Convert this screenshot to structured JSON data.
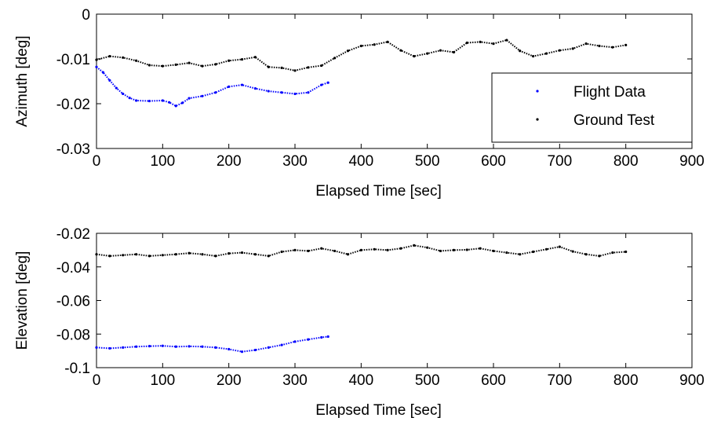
{
  "chart_data": [
    {
      "type": "scatter",
      "xlabel": "Elapsed Time [sec]",
      "ylabel": "Azimuth [deg]",
      "xlim": [
        0,
        900
      ],
      "ylim": [
        -0.03,
        0
      ],
      "xticks": [
        0,
        100,
        200,
        300,
        400,
        500,
        600,
        700,
        800,
        900
      ],
      "xtick_labels": [
        "0",
        "100",
        "200",
        "300",
        "400",
        "500",
        "600",
        "700",
        "800",
        "900"
      ],
      "yticks": [
        -0.03,
        -0.02,
        -0.01,
        0
      ],
      "ytick_labels": [
        "-0.03",
        "-0.02",
        "-0.01",
        "0"
      ],
      "grid": false,
      "legend": {
        "placement": "right",
        "entries": [
          "Flight Data",
          "Ground Test"
        ]
      },
      "series": [
        {
          "name": "Flight Data",
          "color": "#0000ff",
          "x": [
            0,
            10,
            20,
            30,
            40,
            50,
            60,
            80,
            100,
            110,
            120,
            130,
            140,
            160,
            180,
            200,
            220,
            240,
            260,
            280,
            300,
            320,
            340,
            350
          ],
          "y": [
            -0.0118,
            -0.013,
            -0.0148,
            -0.0165,
            -0.0178,
            -0.0187,
            -0.0193,
            -0.0194,
            -0.0193,
            -0.0197,
            -0.0205,
            -0.0198,
            -0.0188,
            -0.0183,
            -0.0175,
            -0.0162,
            -0.0158,
            -0.0166,
            -0.0172,
            -0.0175,
            -0.0178,
            -0.0175,
            -0.0158,
            -0.0153
          ]
        },
        {
          "name": "Ground Test",
          "color": "#000000",
          "x": [
            0,
            20,
            40,
            60,
            80,
            100,
            120,
            140,
            160,
            180,
            200,
            220,
            240,
            260,
            280,
            300,
            320,
            340,
            360,
            380,
            400,
            420,
            440,
            460,
            480,
            500,
            520,
            540,
            560,
            580,
            600,
            620,
            640,
            660,
            680,
            700,
            720,
            740,
            760,
            780,
            800
          ],
          "y": [
            -0.0102,
            -0.0094,
            -0.0097,
            -0.0104,
            -0.0114,
            -0.0116,
            -0.0113,
            -0.0109,
            -0.0116,
            -0.0112,
            -0.0104,
            -0.0101,
            -0.0096,
            -0.0118,
            -0.012,
            -0.0126,
            -0.0119,
            -0.0115,
            -0.0098,
            -0.0082,
            -0.0071,
            -0.0068,
            -0.0062,
            -0.0081,
            -0.0094,
            -0.0088,
            -0.0081,
            -0.0085,
            -0.0064,
            -0.0062,
            -0.0066,
            -0.0058,
            -0.0082,
            -0.0094,
            -0.0088,
            -0.0081,
            -0.0077,
            -0.0066,
            -0.0071,
            -0.0074,
            -0.0069
          ]
        }
      ]
    },
    {
      "type": "scatter",
      "xlabel": "Elapsed Time [sec]",
      "ylabel": "Elevation [deg]",
      "xlim": [
        0,
        900
      ],
      "ylim": [
        -0.1,
        -0.02
      ],
      "xticks": [
        0,
        100,
        200,
        300,
        400,
        500,
        600,
        700,
        800,
        900
      ],
      "xtick_labels": [
        "0",
        "100",
        "200",
        "300",
        "400",
        "500",
        "600",
        "700",
        "800",
        "900"
      ],
      "yticks": [
        -0.1,
        -0.08,
        -0.06,
        -0.04,
        -0.02
      ],
      "ytick_labels": [
        "-0.1",
        "-0.08",
        "-0.06",
        "-0.04",
        "-0.02"
      ],
      "grid": false,
      "series": [
        {
          "color": "#0000ff",
          "x": [
            0,
            20,
            40,
            60,
            80,
            100,
            120,
            140,
            160,
            180,
            200,
            220,
            240,
            260,
            280,
            300,
            320,
            340,
            350
          ],
          "y": [
            -0.088,
            -0.0885,
            -0.088,
            -0.0875,
            -0.0872,
            -0.087,
            -0.0875,
            -0.0873,
            -0.0875,
            -0.088,
            -0.089,
            -0.0905,
            -0.0895,
            -0.088,
            -0.0865,
            -0.0845,
            -0.0832,
            -0.082,
            -0.0815
          ]
        },
        {
          "color": "#000000",
          "x": [
            0,
            20,
            40,
            60,
            80,
            100,
            120,
            140,
            160,
            180,
            200,
            220,
            240,
            260,
            280,
            300,
            320,
            340,
            360,
            380,
            400,
            420,
            440,
            460,
            480,
            500,
            520,
            540,
            560,
            580,
            600,
            620,
            640,
            660,
            680,
            700,
            720,
            740,
            760,
            780,
            800
          ],
          "y": [
            -0.0325,
            -0.0335,
            -0.033,
            -0.0325,
            -0.0335,
            -0.033,
            -0.0325,
            -0.0318,
            -0.0325,
            -0.0335,
            -0.032,
            -0.0315,
            -0.0325,
            -0.0335,
            -0.031,
            -0.03,
            -0.0305,
            -0.029,
            -0.0305,
            -0.0325,
            -0.03,
            -0.0295,
            -0.03,
            -0.029,
            -0.0272,
            -0.0285,
            -0.0305,
            -0.03,
            -0.0298,
            -0.029,
            -0.0305,
            -0.0315,
            -0.0325,
            -0.031,
            -0.0295,
            -0.028,
            -0.0308,
            -0.0325,
            -0.0335,
            -0.0315,
            -0.031
          ]
        }
      ]
    }
  ]
}
